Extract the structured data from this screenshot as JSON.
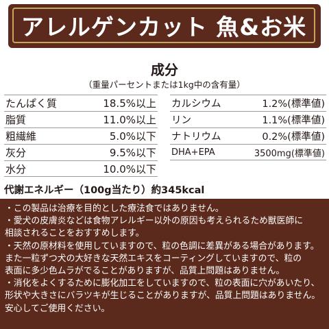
{
  "banner": {
    "title": "アレルゲンカット 魚&お米"
  },
  "section": {
    "heading": "成分",
    "subheading": "（重量パーセントまたは1kg中の含有量）"
  },
  "left_rows": [
    {
      "label": "たんぱく質",
      "value": "18.5%以上"
    },
    {
      "label": "脂質",
      "value": "11.0%以上"
    },
    {
      "label": "粗繊維",
      "value": "5.0%以下"
    },
    {
      "label": "灰分",
      "value": "9.5%以下"
    },
    {
      "label": "水分",
      "value": "10.0%以下"
    }
  ],
  "right_rows": [
    {
      "label": "カルシウム",
      "value": "1.2%(標準値)"
    },
    {
      "label": "リン",
      "value": "1.1%(標準値)"
    },
    {
      "label": "ナトリウム",
      "value": "0.2%(標準値)"
    },
    {
      "label": "DHA+EPA",
      "value": "3500mg(標準値)"
    }
  ],
  "energy": "代謝エネルギー（100g当たり）約345kcal",
  "notes": [
    "・この製品は治療を目的とした療法食ではありません。",
    "・愛犬の皮膚炎などは食物アレルギー以外の原因も考えられるため獣医師に",
    "相談されることをおすすめします。",
    "・天然の原材料を使用していますので、粒の色調に差異がある場合があります。",
    "また一粒ずつ犬の大好きな天然エキスをコーティングしていますので、粒の",
    "表面に多少色ムラがでることがありますが、品質上問題はありません。",
    "・消化をよくするために膨化加工をしていますので、粒の表面に穴があいたり、",
    "形状や大きさにバラツキが生じることがありますが、品質上問題はありません。",
    "安心してご使用ください。"
  ]
}
